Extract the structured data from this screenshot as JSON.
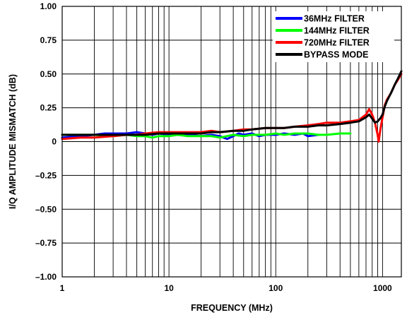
{
  "chart_data": {
    "type": "line",
    "title": "",
    "xlabel": "FREQUENCY (MHz)",
    "ylabel": "I/Q AMPLITUDE MISMATCH (dB)",
    "x_scale": "log",
    "xlim": [
      1,
      1500
    ],
    "ylim": [
      -1.0,
      1.0
    ],
    "x_ticks": [
      1,
      10,
      100,
      1000
    ],
    "x_tick_labels": [
      "1",
      "10",
      "100",
      "1000"
    ],
    "y_ticks": [
      1.0,
      0.75,
      0.5,
      0.25,
      0,
      -0.25,
      -0.5,
      -0.75,
      -1.0
    ],
    "y_tick_labels": [
      "1.00",
      "0.75",
      "0.50",
      "0.25",
      "0",
      "–0.25",
      "–0.50",
      "–0.75",
      "–1.00"
    ],
    "grid": true,
    "legend_position": "top-right",
    "series": [
      {
        "name": "36MHz FILTER",
        "color": "#0000ff",
        "x": [
          1,
          1.5,
          2,
          2.5,
          3,
          4,
          5,
          6,
          7,
          8,
          10,
          12,
          15,
          20,
          25,
          30,
          35,
          40,
          45,
          50,
          60,
          70,
          80,
          100,
          120,
          150,
          180,
          200,
          250
        ],
        "y": [
          0.03,
          0.04,
          0.05,
          0.06,
          0.06,
          0.06,
          0.07,
          0.06,
          0.05,
          0.06,
          0.05,
          0.06,
          0.05,
          0.04,
          0.05,
          0.04,
          0.02,
          0.04,
          0.06,
          0.05,
          0.06,
          0.04,
          0.05,
          0.05,
          0.06,
          0.05,
          0.06,
          0.04,
          0.05
        ]
      },
      {
        "name": "144MHz FILTER",
        "color": "#00ff00",
        "x": [
          1,
          1.5,
          2,
          3,
          4,
          5,
          6,
          7,
          8,
          10,
          12,
          15,
          20,
          25,
          30,
          40,
          50,
          60,
          80,
          100,
          120,
          150,
          200,
          250,
          300,
          400,
          500
        ],
        "y": [
          0.05,
          0.05,
          0.05,
          0.04,
          0.05,
          0.04,
          0.04,
          0.03,
          0.04,
          0.04,
          0.05,
          0.04,
          0.04,
          0.04,
          0.03,
          0.05,
          0.04,
          0.05,
          0.05,
          0.06,
          0.05,
          0.06,
          0.06,
          0.05,
          0.05,
          0.06,
          0.06
        ]
      },
      {
        "name": "720MHz FILTER",
        "color": "#ff0000",
        "x": [
          1,
          1.5,
          2,
          3,
          4,
          5,
          6,
          8,
          10,
          12,
          15,
          20,
          25,
          30,
          40,
          50,
          60,
          80,
          100,
          120,
          150,
          200,
          250,
          300,
          400,
          500,
          600,
          700,
          750,
          800,
          850,
          900,
          920,
          950,
          1000,
          1050,
          1100,
          1200,
          1300,
          1400,
          1500
        ],
        "y": [
          0.02,
          0.03,
          0.03,
          0.04,
          0.05,
          0.05,
          0.06,
          0.07,
          0.07,
          0.07,
          0.07,
          0.07,
          0.08,
          0.07,
          0.08,
          0.09,
          0.09,
          0.1,
          0.1,
          0.1,
          0.11,
          0.12,
          0.13,
          0.14,
          0.14,
          0.15,
          0.16,
          0.2,
          0.24,
          0.2,
          0.14,
          0.05,
          0.0,
          0.08,
          0.18,
          0.27,
          0.31,
          0.36,
          0.42,
          0.46,
          0.5
        ]
      },
      {
        "name": "BYPASS MODE",
        "color": "#000000",
        "x": [
          1,
          1.5,
          2,
          3,
          4,
          5,
          6,
          8,
          10,
          12,
          15,
          20,
          25,
          30,
          40,
          50,
          60,
          80,
          100,
          120,
          150,
          200,
          250,
          300,
          400,
          500,
          600,
          700,
          750,
          800,
          850,
          900,
          950,
          1000,
          1050,
          1100,
          1200,
          1300,
          1400,
          1500
        ],
        "y": [
          0.05,
          0.05,
          0.05,
          0.05,
          0.05,
          0.05,
          0.05,
          0.06,
          0.06,
          0.06,
          0.06,
          0.06,
          0.07,
          0.07,
          0.08,
          0.08,
          0.09,
          0.1,
          0.1,
          0.1,
          0.11,
          0.11,
          0.12,
          0.12,
          0.13,
          0.14,
          0.15,
          0.18,
          0.2,
          0.17,
          0.14,
          0.15,
          0.17,
          0.2,
          0.26,
          0.3,
          0.36,
          0.42,
          0.47,
          0.52
        ]
      }
    ]
  }
}
